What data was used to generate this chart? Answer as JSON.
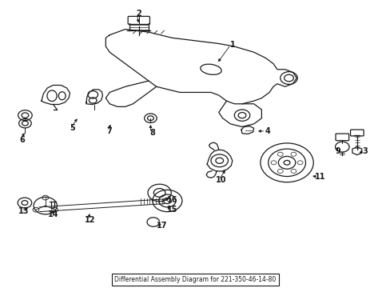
{
  "title": "Differential Assembly Diagram for 221-350-46-14-80",
  "bg_color": "#ffffff",
  "line_color": "#1a1a1a",
  "figsize": [
    4.89,
    3.6
  ],
  "dpi": 100,
  "label_positions": {
    "1": [
      0.595,
      0.845,
      0.555,
      0.78
    ],
    "2": [
      0.355,
      0.955,
      0.355,
      0.915
    ],
    "3": [
      0.935,
      0.475,
      0.915,
      0.465
    ],
    "4": [
      0.685,
      0.545,
      0.655,
      0.545
    ],
    "5": [
      0.185,
      0.555,
      0.2,
      0.595
    ],
    "6": [
      0.055,
      0.515,
      0.065,
      0.545
    ],
    "7": [
      0.28,
      0.545,
      0.285,
      0.575
    ],
    "8": [
      0.39,
      0.54,
      0.385,
      0.575
    ],
    "9": [
      0.865,
      0.475,
      0.87,
      0.495
    ],
    "10": [
      0.565,
      0.375,
      0.58,
      0.415
    ],
    "11": [
      0.82,
      0.385,
      0.795,
      0.39
    ],
    "12": [
      0.23,
      0.235,
      0.23,
      0.265
    ],
    "13": [
      0.06,
      0.265,
      0.075,
      0.285
    ],
    "14": [
      0.135,
      0.255,
      0.14,
      0.275
    ],
    "15": [
      0.44,
      0.27,
      0.425,
      0.29
    ],
    "16": [
      0.44,
      0.305,
      0.415,
      0.308
    ],
    "17": [
      0.415,
      0.215,
      0.4,
      0.23
    ]
  }
}
